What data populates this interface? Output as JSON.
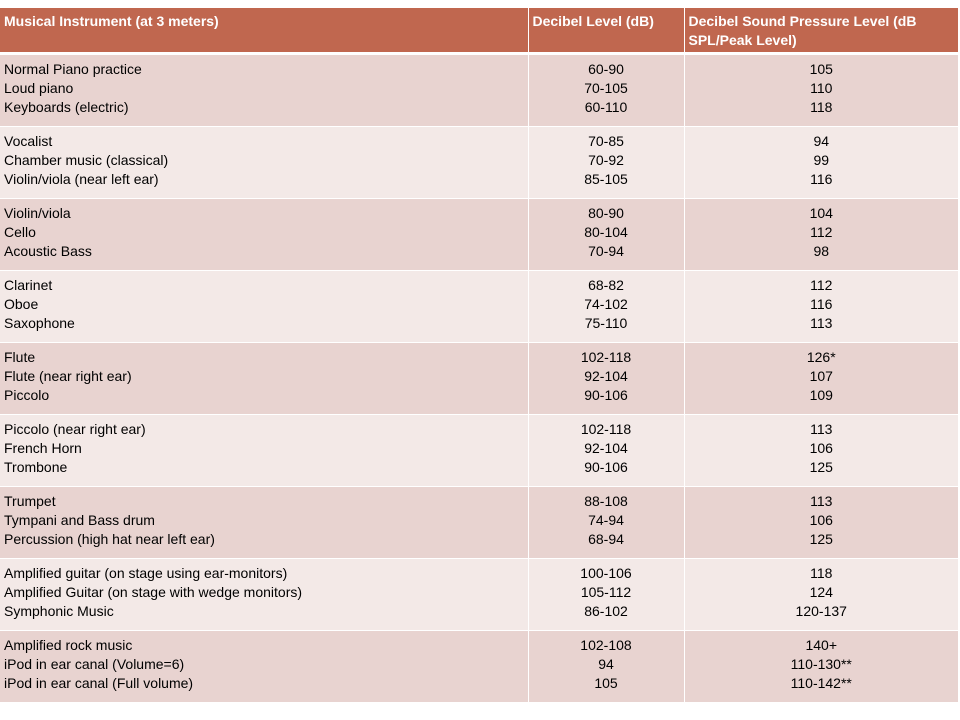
{
  "table": {
    "headers": [
      "Musical Instrument (at 3 meters)",
      "Decibel Level  (dB)",
      "Decibel Sound Pressure Level (dB SPL/Peak Level)"
    ],
    "rows": [
      {
        "instruments": [
          "Normal Piano practice",
          "Loud piano",
          "Keyboards (electric)"
        ],
        "db": [
          "60-90",
          "70-105",
          "60-110"
        ],
        "spl": [
          "105",
          "110",
          "118"
        ]
      },
      {
        "instruments": [
          "Vocalist",
          "Chamber music (classical)",
          "Violin/viola (near left ear)"
        ],
        "db": [
          "70-85",
          "70-92",
          "85-105"
        ],
        "spl": [
          "94",
          "99",
          "116"
        ]
      },
      {
        "instruments": [
          "Violin/viola",
          "Cello",
          "Acoustic Bass"
        ],
        "db": [
          "80-90",
          "80-104",
          "70-94"
        ],
        "spl": [
          "104",
          "112",
          "98"
        ]
      },
      {
        "instruments": [
          "Clarinet",
          "Oboe",
          "Saxophone"
        ],
        "db": [
          "68-82",
          "74-102",
          "75-110"
        ],
        "spl": [
          "112",
          "116",
          "113"
        ]
      },
      {
        "instruments": [
          "Flute",
          "Flute (near right ear)",
          "Piccolo"
        ],
        "db": [
          "102-118",
          "92-104",
          "90-106"
        ],
        "spl": [
          "126*",
          "107",
          "109"
        ]
      },
      {
        "instruments": [
          "Piccolo (near right ear)",
          "French Horn",
          "Trombone"
        ],
        "db": [
          "102-118",
          "92-104",
          "90-106"
        ],
        "spl": [
          "113",
          "106",
          "125"
        ]
      },
      {
        "instruments": [
          "Trumpet",
          "Tympani and Bass drum",
          "Percussion (high hat near left ear)"
        ],
        "db": [
          "88-108",
          "74-94",
          "68-94"
        ],
        "spl": [
          "113",
          "106",
          "125"
        ]
      },
      {
        "instruments": [
          "Amplified guitar (on stage using ear-monitors)",
          "Amplified Guitar (on stage with wedge monitors)",
          "Symphonic Music"
        ],
        "db": [
          "100-106",
          "105-112",
          "86-102"
        ],
        "spl": [
          "118",
          "124",
          "120-137"
        ]
      },
      {
        "instruments": [
          "Amplified rock music",
          "iPod in ear canal (Volume=6)",
          "iPod in ear canal (Full volume)"
        ],
        "db": [
          "102-108",
          "94",
          "105"
        ],
        "spl": [
          "140+",
          "110-130**",
          "110-142**"
        ]
      }
    ]
  },
  "colors": {
    "header_bg": "#c0674f",
    "row_dark": "#e8d3d0",
    "row_light": "#f3e9e7"
  }
}
